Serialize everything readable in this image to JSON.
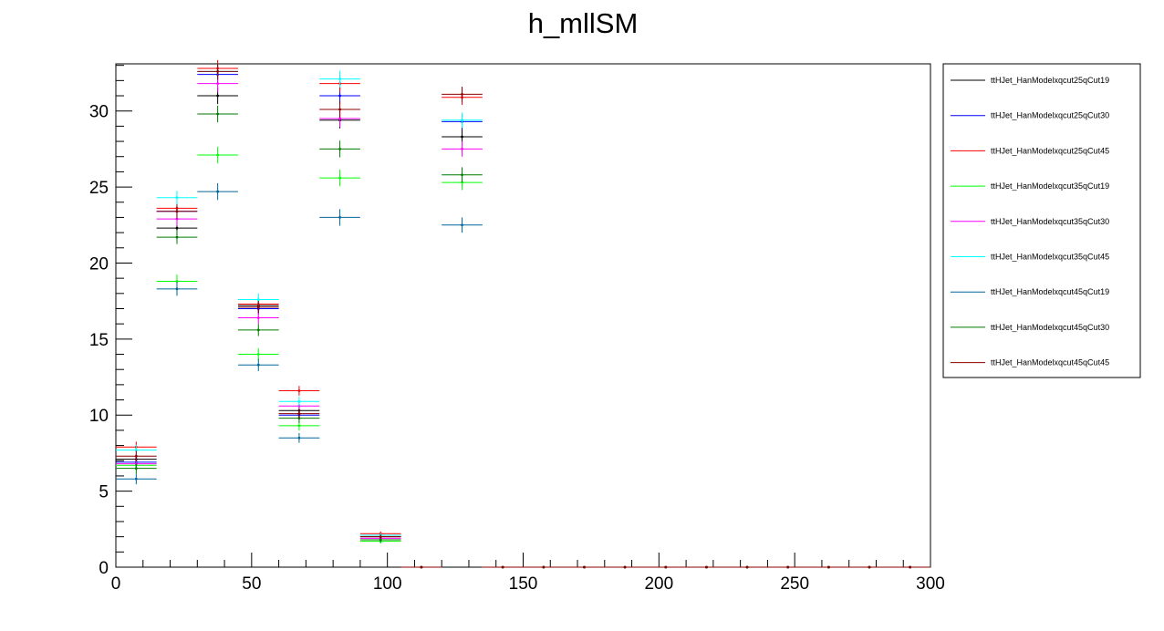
{
  "chart_data": {
    "type": "scatter",
    "title": "h_mllSM",
    "xlabel": "",
    "ylabel": "",
    "xlim": [
      0,
      300
    ],
    "ylim": [
      0,
      33.1
    ],
    "bin_width": 15,
    "x_ticks": [
      0,
      50,
      100,
      150,
      200,
      250,
      300
    ],
    "y_ticks": [
      0,
      5,
      10,
      15,
      20,
      25,
      30
    ],
    "grid": false,
    "legend_position": "right",
    "bin_centers": [
      7.5,
      22.5,
      37.5,
      52.5,
      67.5,
      82.5,
      97.5,
      112.5,
      127.5,
      142.5,
      157.5,
      172.5,
      187.5,
      202.5,
      217.5,
      232.5,
      247.5,
      262.5,
      277.5,
      292.5
    ],
    "series": [
      {
        "name": "ttHJet_HanModelxqcut25qCut19",
        "color": "#000000",
        "values": [
          7.1,
          22.3,
          31.0,
          17.2,
          10.3,
          29.4,
          2.0,
          0,
          28.3,
          0,
          0,
          0,
          0,
          0,
          0,
          0,
          0,
          0,
          0,
          0
        ],
        "errors": [
          0.35,
          0.45,
          0.55,
          0.4,
          0.32,
          0.55,
          0.15,
          0,
          0.5,
          0,
          0,
          0,
          0,
          0,
          0,
          0,
          0,
          0,
          0,
          0
        ]
      },
      {
        "name": "ttHJet_HanModelxqcut25qCut30",
        "color": "#0000ff",
        "values": [
          6.9,
          23.4,
          32.4,
          17.0,
          10.0,
          31.0,
          2.1,
          0,
          29.3,
          0,
          0,
          0,
          0,
          0,
          0,
          0,
          0,
          0,
          0,
          0
        ],
        "errors": [
          0.35,
          0.45,
          0.55,
          0.4,
          0.32,
          0.55,
          0.15,
          0,
          0.5,
          0,
          0,
          0,
          0,
          0,
          0,
          0,
          0,
          0,
          0,
          0
        ]
      },
      {
        "name": "ttHJet_HanModelxqcut25qCut45",
        "color": "#ff0000",
        "values": [
          7.9,
          23.6,
          32.8,
          17.3,
          11.6,
          31.8,
          2.2,
          0,
          30.9,
          0,
          0,
          0,
          0,
          0,
          0,
          0,
          0,
          0,
          0,
          0
        ],
        "errors": [
          0.35,
          0.45,
          0.55,
          0.4,
          0.32,
          0.55,
          0.15,
          0,
          0.5,
          0,
          0,
          0,
          0,
          0,
          0,
          0,
          0,
          0,
          0,
          0
        ]
      },
      {
        "name": "ttHJet_HanModelxqcut35qCut19",
        "color": "#00ff00",
        "values": [
          6.7,
          18.8,
          27.1,
          14.0,
          9.3,
          25.6,
          1.7,
          0,
          25.3,
          0,
          0,
          0,
          0,
          0,
          0,
          0,
          0,
          0,
          0,
          0
        ],
        "errors": [
          0.35,
          0.45,
          0.55,
          0.4,
          0.32,
          0.55,
          0.15,
          0,
          0.5,
          0,
          0,
          0,
          0,
          0,
          0,
          0,
          0,
          0,
          0,
          0
        ]
      },
      {
        "name": "ttHJet_HanModelxqcut35qCut30",
        "color": "#ff00ff",
        "values": [
          6.8,
          22.9,
          31.8,
          16.4,
          10.6,
          29.5,
          1.9,
          0,
          27.5,
          0,
          0,
          0,
          0,
          0,
          0,
          0,
          0,
          0,
          0,
          0
        ],
        "errors": [
          0.35,
          0.45,
          0.55,
          0.4,
          0.32,
          0.55,
          0.15,
          0,
          0.5,
          0,
          0,
          0,
          0,
          0,
          0,
          0,
          0,
          0,
          0,
          0
        ]
      },
      {
        "name": "ttHJet_HanModelxqcut35qCut45",
        "color": "#00ffff",
        "values": [
          7.7,
          24.3,
          32.6,
          17.6,
          10.9,
          32.1,
          2.1,
          0,
          29.4,
          0,
          0,
          0,
          0,
          0,
          0,
          0,
          0,
          0,
          0,
          0
        ],
        "errors": [
          0.35,
          0.45,
          0.55,
          0.4,
          0.32,
          0.55,
          0.15,
          0,
          0.5,
          0,
          0,
          0,
          0,
          0,
          0,
          0,
          0,
          0,
          0,
          0
        ]
      },
      {
        "name": "ttHJet_HanModelxqcut45qCut19",
        "color": "#006699",
        "values": [
          5.8,
          18.3,
          24.7,
          13.3,
          8.5,
          23.0,
          1.8,
          0,
          22.5,
          0,
          0,
          0,
          0,
          0,
          0,
          0,
          0,
          0,
          0,
          0
        ],
        "errors": [
          0.35,
          0.45,
          0.55,
          0.4,
          0.32,
          0.55,
          0.15,
          0,
          0.5,
          0,
          0,
          0,
          0,
          0,
          0,
          0,
          0,
          0,
          0,
          0
        ]
      },
      {
        "name": "ttHJet_HanModelxqcut45qCut30",
        "color": "#007a00",
        "values": [
          6.5,
          21.7,
          29.8,
          15.6,
          9.8,
          27.5,
          1.8,
          0,
          25.8,
          0,
          0,
          0,
          0,
          0,
          0,
          0,
          0,
          0,
          0,
          0
        ],
        "errors": [
          0.35,
          0.45,
          0.55,
          0.4,
          0.32,
          0.55,
          0.15,
          0,
          0.5,
          0,
          0,
          0,
          0,
          0,
          0,
          0,
          0,
          0,
          0,
          0
        ]
      },
      {
        "name": "ttHJet_HanModelxqcut45qCut45",
        "color": "#8b0000",
        "values": [
          7.3,
          23.4,
          32.6,
          17.1,
          10.1,
          30.1,
          2.0,
          0,
          31.1,
          0,
          0,
          0,
          0,
          0,
          0,
          0,
          0,
          0,
          0,
          0
        ],
        "errors": [
          0.35,
          0.45,
          0.55,
          0.4,
          0.32,
          0.55,
          0.15,
          0,
          0.5,
          0,
          0,
          0,
          0,
          0,
          0,
          0,
          0,
          0,
          0,
          0
        ]
      }
    ]
  }
}
